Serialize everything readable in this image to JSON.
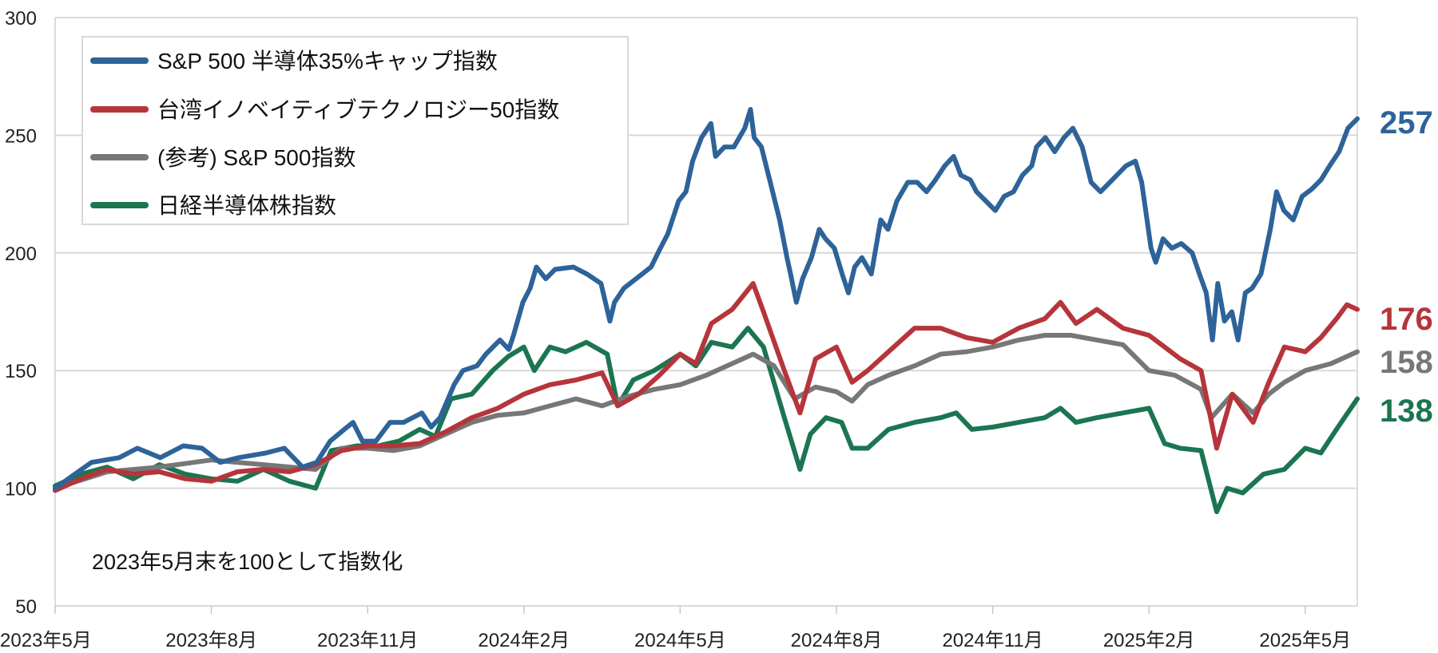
{
  "chart_data": {
    "type": "line",
    "title": "",
    "xlabel": "",
    "ylabel": "",
    "ylim": [
      50,
      300
    ],
    "yticks": [
      50,
      100,
      150,
      200,
      250,
      300
    ],
    "x_unit": "months since 2023-05-31",
    "xlim": [
      0,
      25
    ],
    "xticks": [
      {
        "x": 0,
        "label": "2023年5月"
      },
      {
        "x": 3,
        "label": "2023年8月"
      },
      {
        "x": 6,
        "label": "2023年11月"
      },
      {
        "x": 9,
        "label": "2024年2月"
      },
      {
        "x": 12,
        "label": "2024年5月"
      },
      {
        "x": 15,
        "label": "2024年8月"
      },
      {
        "x": 18,
        "label": "2024年11月"
      },
      {
        "x": 21,
        "label": "2025年2月"
      },
      {
        "x": 24,
        "label": "2025年5月"
      }
    ],
    "grid": "horizontal",
    "legend_position": "top-left",
    "annotation": "2023年5月末を100として指数化",
    "series": [
      {
        "name": "S&P 500 半導体35%キャップ指数",
        "color": "#2e6399",
        "end_label": "257",
        "points": [
          [
            0,
            100
          ],
          [
            0.44,
            107
          ],
          [
            0.7,
            111
          ],
          [
            1.23,
            113
          ],
          [
            1.58,
            117
          ],
          [
            2.02,
            113
          ],
          [
            2.46,
            118
          ],
          [
            2.82,
            117
          ],
          [
            3.17,
            111
          ],
          [
            3.52,
            113
          ],
          [
            4.05,
            115
          ],
          [
            4.4,
            117
          ],
          [
            4.75,
            109
          ],
          [
            5.02,
            111
          ],
          [
            5.28,
            120
          ],
          [
            5.55,
            125
          ],
          [
            5.72,
            128
          ],
          [
            5.9,
            120
          ],
          [
            6.16,
            120
          ],
          [
            6.43,
            128
          ],
          [
            6.69,
            128
          ],
          [
            7.04,
            132
          ],
          [
            7.22,
            126
          ],
          [
            7.39,
            130
          ],
          [
            7.66,
            144
          ],
          [
            7.83,
            150
          ],
          [
            8.1,
            152
          ],
          [
            8.27,
            157
          ],
          [
            8.54,
            163
          ],
          [
            8.71,
            159
          ],
          [
            8.8,
            165
          ],
          [
            8.98,
            179
          ],
          [
            9.12,
            185
          ],
          [
            9.24,
            194
          ],
          [
            9.42,
            189
          ],
          [
            9.6,
            193
          ],
          [
            9.95,
            194
          ],
          [
            10.21,
            191
          ],
          [
            10.48,
            187
          ],
          [
            10.65,
            171
          ],
          [
            10.74,
            179
          ],
          [
            10.92,
            185
          ],
          [
            11.27,
            191
          ],
          [
            11.44,
            194
          ],
          [
            11.62,
            202
          ],
          [
            11.76,
            208
          ],
          [
            11.97,
            222
          ],
          [
            12.11,
            226
          ],
          [
            12.24,
            239
          ],
          [
            12.41,
            249
          ],
          [
            12.59,
            255
          ],
          [
            12.68,
            241
          ],
          [
            12.85,
            245
          ],
          [
            13.03,
            245
          ],
          [
            13.24,
            253
          ],
          [
            13.35,
            261
          ],
          [
            13.42,
            249
          ],
          [
            13.56,
            245
          ],
          [
            13.73,
            230
          ],
          [
            13.91,
            214
          ],
          [
            14.05,
            198
          ],
          [
            14.12,
            191
          ],
          [
            14.23,
            179
          ],
          [
            14.35,
            189
          ],
          [
            14.52,
            198
          ],
          [
            14.67,
            210
          ],
          [
            14.79,
            206
          ],
          [
            14.96,
            202
          ],
          [
            15.11,
            191
          ],
          [
            15.23,
            183
          ],
          [
            15.35,
            194
          ],
          [
            15.49,
            198
          ],
          [
            15.67,
            191
          ],
          [
            15.85,
            214
          ],
          [
            15.99,
            210
          ],
          [
            16.16,
            222
          ],
          [
            16.37,
            230
          ],
          [
            16.55,
            230
          ],
          [
            16.73,
            226
          ],
          [
            16.9,
            231
          ],
          [
            17.08,
            237
          ],
          [
            17.25,
            241
          ],
          [
            17.39,
            233
          ],
          [
            17.57,
            231
          ],
          [
            17.69,
            226
          ],
          [
            17.87,
            222
          ],
          [
            18.05,
            218
          ],
          [
            18.22,
            224
          ],
          [
            18.4,
            226
          ],
          [
            18.57,
            233
          ],
          [
            18.75,
            237
          ],
          [
            18.84,
            245
          ],
          [
            19.01,
            249
          ],
          [
            19.19,
            243
          ],
          [
            19.37,
            249
          ],
          [
            19.54,
            253
          ],
          [
            19.72,
            245
          ],
          [
            19.89,
            230
          ],
          [
            20.07,
            226
          ],
          [
            20.25,
            230
          ],
          [
            20.56,
            237
          ],
          [
            20.74,
            239
          ],
          [
            20.86,
            230
          ],
          [
            21.04,
            202
          ],
          [
            21.13,
            196
          ],
          [
            21.27,
            206
          ],
          [
            21.44,
            202
          ],
          [
            21.62,
            204
          ],
          [
            21.83,
            200
          ],
          [
            21.97,
            191
          ],
          [
            22.1,
            183
          ],
          [
            22.22,
            163
          ],
          [
            22.32,
            187
          ],
          [
            22.45,
            171
          ],
          [
            22.59,
            175
          ],
          [
            22.71,
            163
          ],
          [
            22.85,
            183
          ],
          [
            22.98,
            185
          ],
          [
            23.15,
            191
          ],
          [
            23.33,
            210
          ],
          [
            23.45,
            226
          ],
          [
            23.59,
            218
          ],
          [
            23.77,
            214
          ],
          [
            23.94,
            224
          ],
          [
            24.12,
            227
          ],
          [
            24.3,
            231
          ],
          [
            24.47,
            237
          ],
          [
            24.65,
            243
          ],
          [
            24.82,
            253
          ],
          [
            25,
            257
          ]
        ]
      },
      {
        "name": "台湾イノベイティブテクノロジー50指数",
        "color": "#b5353b",
        "end_label": "176",
        "points": [
          [
            0,
            99
          ],
          [
            0.5,
            104
          ],
          [
            1,
            108
          ],
          [
            1.5,
            106
          ],
          [
            2,
            107
          ],
          [
            2.5,
            104
          ],
          [
            3,
            103
          ],
          [
            3.5,
            107
          ],
          [
            4,
            108
          ],
          [
            4.5,
            107
          ],
          [
            5,
            110
          ],
          [
            5.5,
            116
          ],
          [
            6,
            118
          ],
          [
            6.5,
            118
          ],
          [
            7,
            119
          ],
          [
            7.5,
            124
          ],
          [
            8,
            130
          ],
          [
            8.5,
            134
          ],
          [
            9,
            140
          ],
          [
            9.5,
            144
          ],
          [
            10,
            146
          ],
          [
            10.5,
            149
          ],
          [
            10.8,
            135
          ],
          [
            11.2,
            140
          ],
          [
            11.6,
            148
          ],
          [
            12,
            157
          ],
          [
            12.3,
            153
          ],
          [
            12.6,
            170
          ],
          [
            13,
            176
          ],
          [
            13.4,
            187
          ],
          [
            13.6,
            175
          ],
          [
            14,
            150
          ],
          [
            14.3,
            132
          ],
          [
            14.6,
            155
          ],
          [
            15,
            160
          ],
          [
            15.3,
            145
          ],
          [
            15.6,
            150
          ],
          [
            16,
            158
          ],
          [
            16.5,
            168
          ],
          [
            17,
            168
          ],
          [
            17.5,
            164
          ],
          [
            18,
            162
          ],
          [
            18.5,
            168
          ],
          [
            19,
            172
          ],
          [
            19.3,
            179
          ],
          [
            19.6,
            170
          ],
          [
            20,
            176
          ],
          [
            20.5,
            168
          ],
          [
            21,
            165
          ],
          [
            21.3,
            160
          ],
          [
            21.6,
            155
          ],
          [
            22,
            150
          ],
          [
            22.3,
            117
          ],
          [
            22.6,
            140
          ],
          [
            23,
            128
          ],
          [
            23.3,
            145
          ],
          [
            23.6,
            160
          ],
          [
            24,
            158
          ],
          [
            24.3,
            164
          ],
          [
            24.6,
            172
          ],
          [
            24.8,
            178
          ],
          [
            25,
            176
          ]
        ]
      },
      {
        "name": "(参考) S&P 500指数",
        "color": "#777777",
        "end_label": "158",
        "points": [
          [
            0,
            100
          ],
          [
            1,
            107
          ],
          [
            2,
            109
          ],
          [
            3,
            112
          ],
          [
            4,
            110
          ],
          [
            5,
            108
          ],
          [
            5.5,
            117
          ],
          [
            6,
            117
          ],
          [
            6.5,
            116
          ],
          [
            7,
            118
          ],
          [
            7.5,
            123
          ],
          [
            8,
            128
          ],
          [
            8.5,
            131
          ],
          [
            9,
            132
          ],
          [
            9.5,
            135
          ],
          [
            10,
            138
          ],
          [
            10.5,
            135
          ],
          [
            11,
            139
          ],
          [
            11.5,
            142
          ],
          [
            12,
            144
          ],
          [
            12.5,
            148
          ],
          [
            13,
            153
          ],
          [
            13.4,
            157
          ],
          [
            13.8,
            152
          ],
          [
            14.2,
            138
          ],
          [
            14.6,
            143
          ],
          [
            15,
            141
          ],
          [
            15.3,
            137
          ],
          [
            15.6,
            144
          ],
          [
            16,
            148
          ],
          [
            16.5,
            152
          ],
          [
            17,
            157
          ],
          [
            17.5,
            158
          ],
          [
            18,
            160
          ],
          [
            18.5,
            163
          ],
          [
            19,
            165
          ],
          [
            19.5,
            165
          ],
          [
            20,
            163
          ],
          [
            20.5,
            161
          ],
          [
            21,
            150
          ],
          [
            21.5,
            148
          ],
          [
            22,
            142
          ],
          [
            22.2,
            130
          ],
          [
            22.6,
            140
          ],
          [
            23,
            132
          ],
          [
            23.3,
            140
          ],
          [
            23.6,
            145
          ],
          [
            24,
            150
          ],
          [
            24.5,
            153
          ],
          [
            25,
            158
          ]
        ]
      },
      {
        "name": "日経半導体株指数",
        "color": "#1b7551",
        "end_label": "138",
        "points": [
          [
            0,
            101
          ],
          [
            0.5,
            106
          ],
          [
            1,
            109
          ],
          [
            1.5,
            104
          ],
          [
            2,
            110
          ],
          [
            2.5,
            106
          ],
          [
            3,
            104
          ],
          [
            3.5,
            103
          ],
          [
            4,
            108
          ],
          [
            4.5,
            103
          ],
          [
            5,
            100
          ],
          [
            5.3,
            116
          ],
          [
            5.8,
            118
          ],
          [
            6.2,
            118
          ],
          [
            6.6,
            120
          ],
          [
            7,
            125
          ],
          [
            7.3,
            122
          ],
          [
            7.6,
            138
          ],
          [
            8,
            140
          ],
          [
            8.4,
            150
          ],
          [
            8.7,
            156
          ],
          [
            9,
            160
          ],
          [
            9.2,
            150
          ],
          [
            9.5,
            160
          ],
          [
            9.8,
            158
          ],
          [
            10.2,
            162
          ],
          [
            10.6,
            157
          ],
          [
            10.8,
            135
          ],
          [
            11.1,
            146
          ],
          [
            11.5,
            150
          ],
          [
            12,
            157
          ],
          [
            12.3,
            152
          ],
          [
            12.6,
            162
          ],
          [
            13,
            160
          ],
          [
            13.3,
            168
          ],
          [
            13.6,
            160
          ],
          [
            14,
            130
          ],
          [
            14.3,
            108
          ],
          [
            14.5,
            123
          ],
          [
            14.8,
            130
          ],
          [
            15.1,
            128
          ],
          [
            15.3,
            117
          ],
          [
            15.6,
            117
          ],
          [
            16,
            125
          ],
          [
            16.5,
            128
          ],
          [
            17,
            130
          ],
          [
            17.3,
            132
          ],
          [
            17.6,
            125
          ],
          [
            18,
            126
          ],
          [
            18.5,
            128
          ],
          [
            19,
            130
          ],
          [
            19.3,
            134
          ],
          [
            19.6,
            128
          ],
          [
            20,
            130
          ],
          [
            20.5,
            132
          ],
          [
            21,
            134
          ],
          [
            21.3,
            119
          ],
          [
            21.6,
            117
          ],
          [
            22,
            116
          ],
          [
            22.3,
            90
          ],
          [
            22.5,
            100
          ],
          [
            22.8,
            98
          ],
          [
            23.2,
            106
          ],
          [
            23.6,
            108
          ],
          [
            24,
            117
          ],
          [
            24.3,
            115
          ],
          [
            24.6,
            125
          ],
          [
            25,
            138
          ]
        ]
      }
    ]
  }
}
